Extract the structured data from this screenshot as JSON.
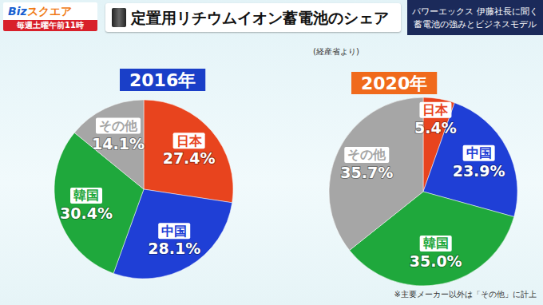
{
  "header": {
    "logo": [
      "Biz",
      "スクエア"
    ],
    "schedule": "毎週土曜午前11時",
    "title": "定置用リチウムイオン蓄電池のシェア",
    "source": "(経産省より)",
    "banner": [
      "パワーエックス 伊藤社長に聞く",
      "蓄電池の強みとビジネスモデル"
    ],
    "note": "※主要メーカー以外は「その他」に計上"
  },
  "chart_data": [
    {
      "type": "pie",
      "title": "2016年",
      "categories": [
        "日本",
        "中国",
        "韓国",
        "その他"
      ],
      "values": [
        27.4,
        28.1,
        30.4,
        14.1
      ],
      "value_labels": [
        "27.4%",
        "28.1%",
        "30.4%",
        "14.1%"
      ],
      "colors": [
        "#e8441e",
        "#1f3fd6",
        "#1fa83c",
        "#a6a6a6"
      ],
      "data_labels": true
    },
    {
      "type": "pie",
      "title": "2020年",
      "categories": [
        "日本",
        "中国",
        "韓国",
        "その他"
      ],
      "values": [
        5.4,
        23.9,
        35.0,
        35.7
      ],
      "value_labels": [
        "5.4%",
        "23.9%",
        "35.0%",
        "35.7%"
      ],
      "colors": [
        "#e8441e",
        "#1f3fd6",
        "#1fa83c",
        "#a6a6a6"
      ],
      "data_labels": true
    }
  ]
}
